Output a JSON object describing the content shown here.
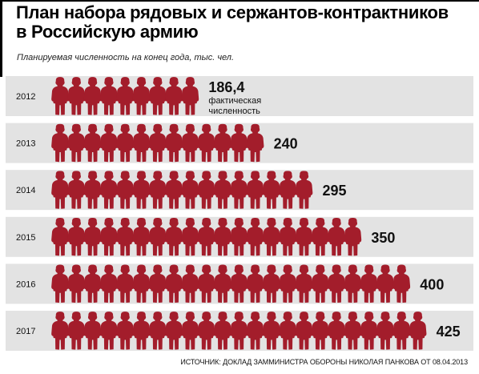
{
  "header": {
    "title_line1": "План набора рядовых и сержантов-контрактников",
    "title_line2": "в Российскую армию",
    "subtitle": "Планируемая численность на конец года, тыс. чел."
  },
  "source": "ИСТОЧНИК: ДОКЛАД ЗАММИНИСТРА ОБОРОНЫ НИКОЛАЯ ПАНКОВА ОТ 08.04.2013",
  "colors": {
    "icon": "#a31d2b",
    "stripe": "#e3e3e3",
    "text": "#111111"
  },
  "icon": "soldier-icon",
  "chart_data": {
    "type": "bar",
    "orientation": "horizontal",
    "title": "План набора рядовых и сержантов-контрактников в Российскую армию",
    "subtitle": "Планируемая численность на конец года, тыс. чел.",
    "categories": [
      "2012",
      "2013",
      "2014",
      "2015",
      "2016",
      "2017"
    ],
    "values": [
      186.4,
      240,
      295,
      350,
      400,
      425
    ],
    "value_labels": [
      "186,4",
      "240",
      "295",
      "350",
      "400",
      "425"
    ],
    "icon_counts": [
      9,
      13,
      16,
      19,
      22,
      23
    ],
    "annotations": [
      {
        "category": "2012",
        "text_line1": "фактическая",
        "text_line2": "численность"
      }
    ],
    "grid": false,
    "legend": "none"
  }
}
